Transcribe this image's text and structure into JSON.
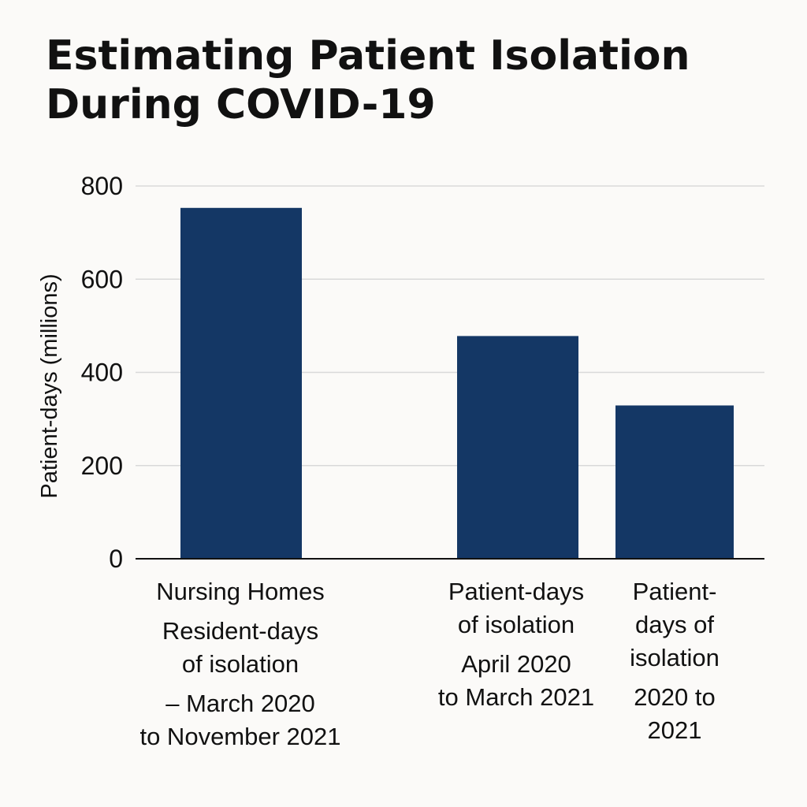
{
  "chart_data": {
    "type": "bar",
    "title": "Estimating Patient Isolation During COVID-19",
    "ylabel": "Patient-days (millions)",
    "xlabel": "",
    "ylim": [
      0,
      800
    ],
    "yticks": [
      0,
      200,
      400,
      600,
      800
    ],
    "grid": true,
    "bar_color": "#143765",
    "categories": [
      {
        "name": "Nursing Homes",
        "label_lines": [
          "Nursing Homes",
          "",
          "Resident-days",
          "of isolation",
          "",
          "– March 2020",
          "to November 2021"
        ],
        "value": 753
      },
      {
        "name": "Patient-days of isolation (April 2020 to March 2021)",
        "label_lines": [
          "Patient-days",
          "of isolation",
          "",
          "April 2020",
          "to March 2021"
        ],
        "value": 478
      },
      {
        "name": "Patient-days of isolation (2020 to 2021)",
        "label_lines": [
          "Patient-",
          "days of",
          "isolation",
          "",
          "2020 to",
          "2021"
        ],
        "value": 329
      }
    ]
  }
}
